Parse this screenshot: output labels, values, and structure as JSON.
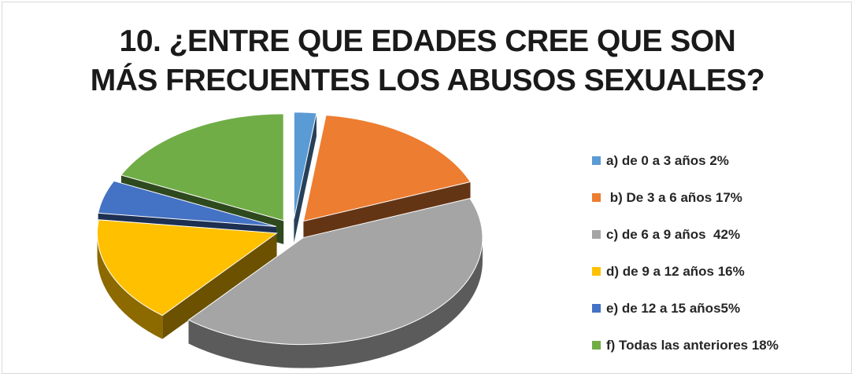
{
  "chart_data": {
    "type": "pie",
    "title_lines": [
      "10. ¿ENTRE QUE EDADES CREE QUE SON",
      "MÁS FRECUENTES LOS ABUSOS SEXUALES?"
    ],
    "slices": [
      {
        "label": "a) de 0 a 3 años 2%",
        "value": 2,
        "color": "#5b9bd5"
      },
      {
        "label": " b) De 3 a 6 años 17%",
        "value": 17,
        "color": "#ed7d31"
      },
      {
        "label": "c) de 6 a 9 años  42%",
        "value": 42,
        "color": "#a5a5a5"
      },
      {
        "label": "d) de 9 a 12 años 16%",
        "value": 16,
        "color": "#ffc000"
      },
      {
        "label": "e) de 12 a 15 años5%",
        "value": 5,
        "color": "#4472c4"
      },
      {
        "label": "f) Todas las anteriores 18%",
        "value": 18,
        "color": "#70ad47"
      }
    ],
    "style": "3d-exploded",
    "legend_position": "right"
  }
}
